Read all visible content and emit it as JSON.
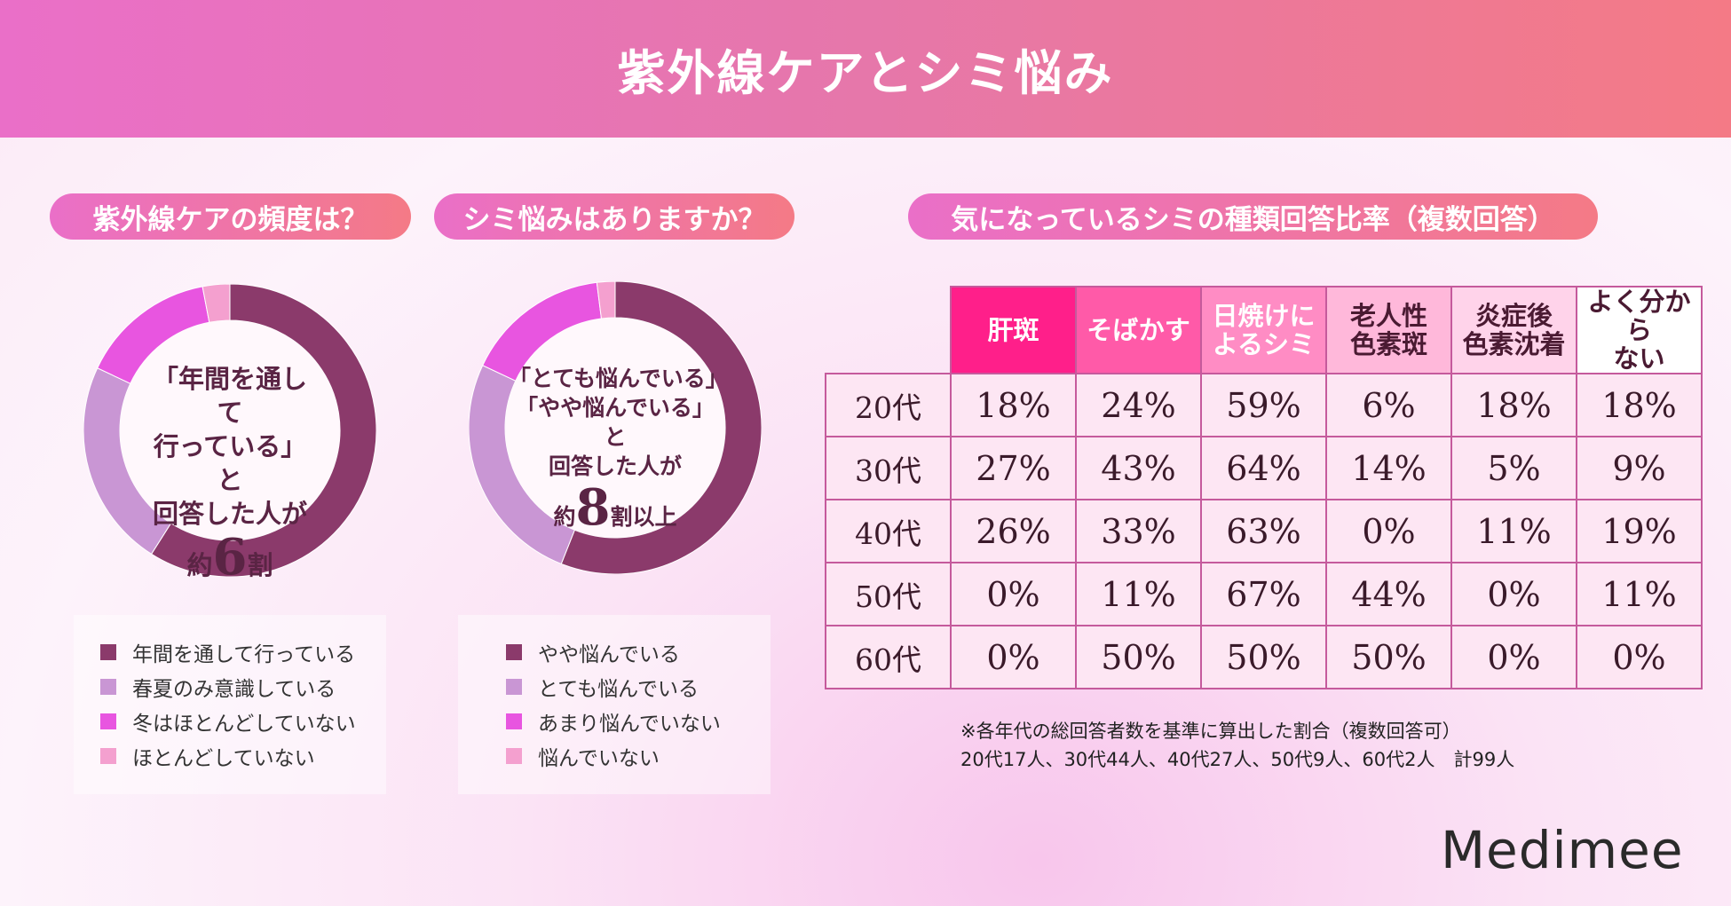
{
  "title": "紫外線ケアとシミ悩み",
  "section1": {
    "heading": "紫外線ケアの頻度は？",
    "center_lines": [
      "「年間を通して",
      "行っている」と",
      "回答した人が"
    ],
    "center_pre": "約",
    "center_big": "6",
    "center_post": "割",
    "legend": [
      "年間を通して行っている",
      "春夏のみ意識している",
      "冬はほとんどしていない",
      "ほとんどしていない"
    ],
    "values_percent": [
      59,
      23,
      15,
      3
    ]
  },
  "section2": {
    "heading": "シミ悩みはありますか？",
    "center_lines": [
      "「とても悩んでいる」",
      "「やや悩んでいる」と",
      "回答した人が"
    ],
    "center_pre": "約",
    "center_big": "8",
    "center_post": "割以上",
    "legend": [
      "やや悩んでいる",
      "とても悩んでいる",
      "あまり悩んでいない",
      "悩んでいない"
    ],
    "donut_order_note": "",
    "values_percent": [
      56,
      26,
      16,
      2
    ]
  },
  "colors": [
    "#8b3a6b",
    "#c996d4",
    "#e855e0",
    "#f4a0cf"
  ],
  "section3": {
    "heading": "気になっているシミの種類回答比率（複数回答）",
    "columns": [
      "肝斑",
      "そばかす",
      "日焼けに\nよるシミ",
      "老人性\n色素斑",
      "炎症後\n色素沈着",
      "よく分から\nない"
    ],
    "column_colors": [
      "#ff1f8a",
      "#ff5aa8",
      "#ff8cc4",
      "#ffb8da",
      "#ffd3ea",
      "#ffffff"
    ],
    "rows": [
      {
        "label": "20代",
        "cells": [
          "18%",
          "24%",
          "59%",
          "6%",
          "18%",
          "18%"
        ]
      },
      {
        "label": "30代",
        "cells": [
          "27%",
          "43%",
          "64%",
          "14%",
          "5%",
          "9%"
        ]
      },
      {
        "label": "40代",
        "cells": [
          "26%",
          "33%",
          "63%",
          "0%",
          "11%",
          "19%"
        ]
      },
      {
        "label": "50代",
        "cells": [
          "0%",
          "11%",
          "67%",
          "44%",
          "0%",
          "11%"
        ]
      },
      {
        "label": "60代",
        "cells": [
          "0%",
          "50%",
          "50%",
          "50%",
          "0%",
          "0%"
        ]
      }
    ],
    "note1": "※各年代の総回答者数を基準に算出した割合（複数回答可）",
    "note2": "20代17人、30代44人、40代27人、50代9人、60代2人　計99人"
  },
  "logo": "Medimee"
}
